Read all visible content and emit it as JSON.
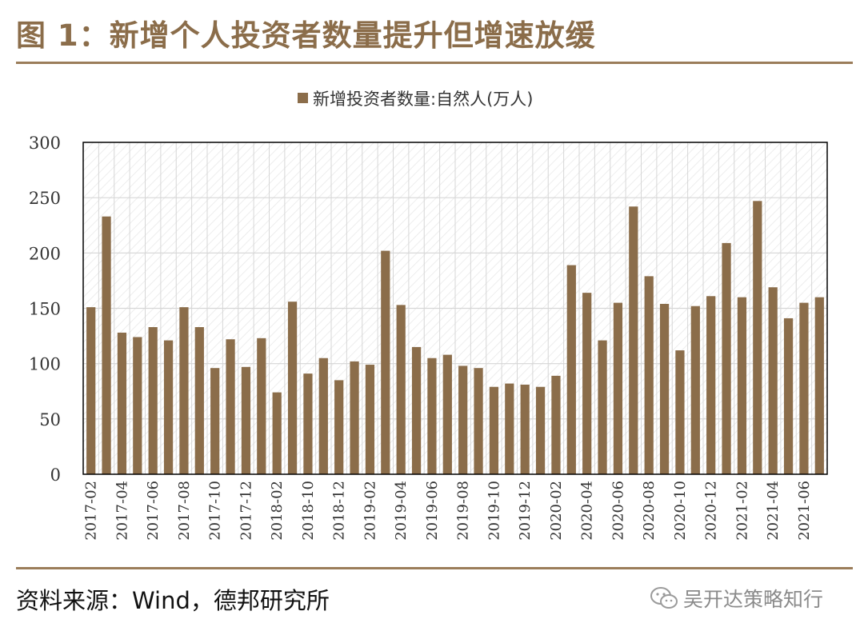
{
  "figure": {
    "title": "图 1：新增个人投资者数量提升但增速放缓",
    "source": "资料来源：Wind，德邦研究所",
    "watermark": "吴开达策略知行"
  },
  "colors": {
    "bar": "#8b6d4a",
    "title": "#8b6d4a",
    "rule": "#9b7d5a"
  },
  "chart_data": {
    "type": "bar",
    "title": "",
    "legend": "新增投资者数量:自然人(万人)",
    "legend_position": "top-center",
    "xlabel": "",
    "ylabel": "",
    "ylim": [
      0,
      300
    ],
    "yticks": [
      0,
      50,
      100,
      150,
      200,
      250,
      300
    ],
    "grid": true,
    "x_tick_labels": [
      "2017-02",
      "2017-04",
      "2017-06",
      "2017-08",
      "2017-10",
      "2017-12",
      "2018-02",
      "2018-10",
      "2018-12",
      "2019-02",
      "2019-04",
      "2019-06",
      "2019-08",
      "2019-10",
      "2019-12",
      "2020-02",
      "2020-04",
      "2020-06",
      "2020-08",
      "2020-10",
      "2020-12",
      "2021-02",
      "2021-04",
      "2021-06"
    ],
    "categories": [
      "2017-02",
      "2017-03",
      "2017-04",
      "2017-05",
      "2017-06",
      "2017-07",
      "2017-08",
      "2017-09",
      "2017-10",
      "2017-11",
      "2017-12",
      "2018-01",
      "2018-02",
      "2018-03",
      "2018-10",
      "2018-11",
      "2018-12",
      "2019-01",
      "2019-02",
      "2019-03",
      "2019-04",
      "2019-05",
      "2019-06",
      "2019-07",
      "2019-08",
      "2019-09",
      "2019-10",
      "2019-11",
      "2019-12",
      "2020-01",
      "2020-02",
      "2020-03",
      "2020-04",
      "2020-05",
      "2020-06",
      "2020-07",
      "2020-08",
      "2020-09",
      "2020-10",
      "2020-11",
      "2020-12",
      "2021-01",
      "2021-02",
      "2021-03",
      "2021-04",
      "2021-05",
      "2021-06",
      "2021-07"
    ],
    "values": [
      151,
      233,
      128,
      124,
      133,
      121,
      151,
      133,
      96,
      122,
      97,
      123,
      74,
      156,
      91,
      105,
      85,
      102,
      99,
      202,
      153,
      115,
      105,
      108,
      98,
      96,
      79,
      82,
      81,
      79,
      89,
      189,
      164,
      121,
      155,
      242,
      179,
      154,
      112,
      152,
      161,
      209,
      160,
      247,
      169,
      141,
      155,
      160
    ]
  }
}
